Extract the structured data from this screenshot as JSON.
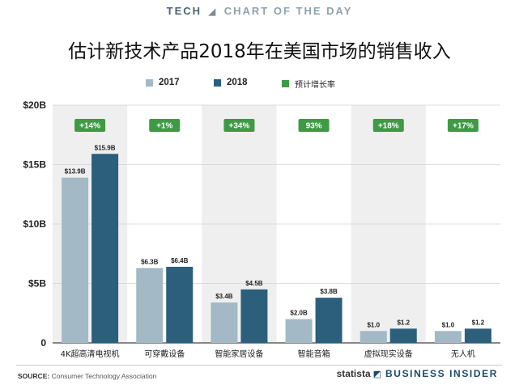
{
  "header": {
    "tech": "TECH",
    "separator": "◢",
    "chart_of_the_day": "CHART OF THE DAY"
  },
  "title": "估计新技术产品2018年在美国市场的销售收入",
  "legend": {
    "items": [
      {
        "label": "2017",
        "color": "#a3b9c5"
      },
      {
        "label": "2018",
        "color": "#2c5f7c"
      },
      {
        "label": "预计增长率",
        "color": "#3e9a44"
      }
    ]
  },
  "chart_data": {
    "type": "bar",
    "title": "估计新技术产品2018年在美国市场的销售收入",
    "categories": [
      "4K超高清电视机",
      "可穿戴设备",
      "智能家居设备",
      "智能音箱",
      "虚拟现实设备",
      "无人机"
    ],
    "series": [
      {
        "name": "2017",
        "color": "#a3b9c5",
        "values": [
          13.9,
          6.3,
          3.4,
          2.0,
          1.0,
          1.0
        ],
        "labels": [
          "$13.9B",
          "$6.3B",
          "$3.4B",
          "$2.0B",
          "$1.0",
          "$1.0"
        ]
      },
      {
        "name": "2018",
        "color": "#2c5f7c",
        "values": [
          15.9,
          6.4,
          4.5,
          3.8,
          1.2,
          1.2
        ],
        "labels": [
          "$15.9B",
          "$6.4B",
          "$4.5B",
          "$3.8B",
          "$1.2",
          "$1.2"
        ]
      }
    ],
    "growth_labels": [
      "+14%",
      "+1%",
      "+34%",
      "93%",
      "+18%",
      "+17%"
    ],
    "growth_color": "#3e9a44",
    "ylim": [
      0,
      20
    ],
    "yticks": [
      0,
      5,
      10,
      15,
      20
    ],
    "ytick_labels": [
      "0",
      "$5B",
      "$10B",
      "$15B",
      "$20B"
    ],
    "xlabel": "",
    "ylabel": "",
    "grid": true,
    "legend_position": "top"
  },
  "footer": {
    "source_label": "SOURCE:",
    "source_text": "Consumer Technology Association",
    "brand_statista": "statista",
    "brand_mark": "◩",
    "brand_bi": "BUSINESS INSIDER"
  }
}
